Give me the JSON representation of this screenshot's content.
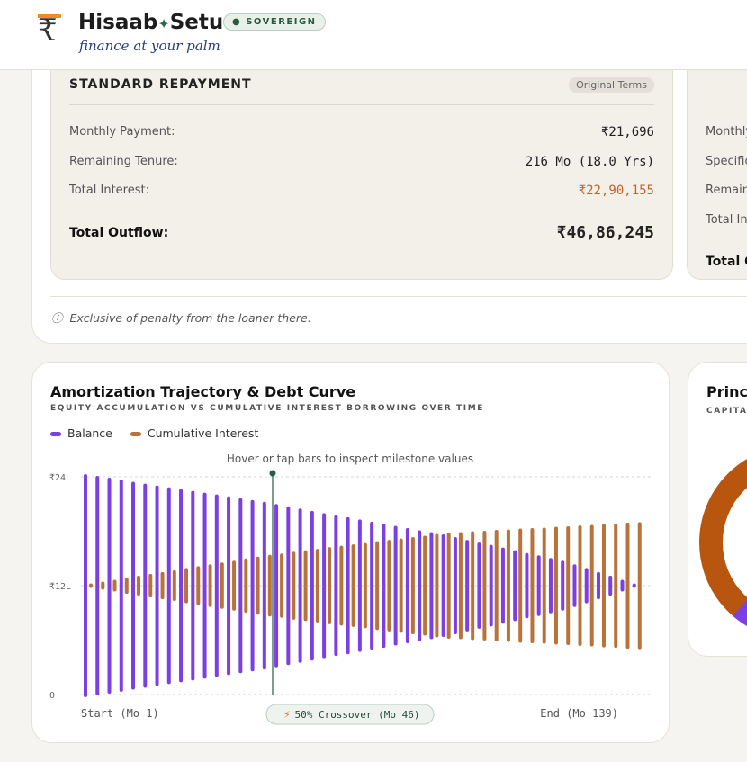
{
  "header": {
    "brand_left": "Hisaab",
    "brand_right": "Setu",
    "tagline": "finance at your palm",
    "badge": "SOVEREIGN"
  },
  "standard_card": {
    "title": "STANDARD REPAYMENT",
    "tag": "Original Terms",
    "rows": [
      {
        "label": "Monthly Payment:",
        "value": "₹21,696"
      },
      {
        "label": "Remaining Tenure:",
        "value": "216 Mo (18.0 Yrs)"
      },
      {
        "label": "Total Interest:",
        "value": "₹22,90,155"
      }
    ],
    "total": {
      "label": "Total Outflow:",
      "value": "₹46,86,245"
    }
  },
  "accelerated_card": {
    "rows": [
      "Monthly",
      "Specific",
      "Remain",
      "Total Int"
    ],
    "total": "Total O"
  },
  "footnote": "Exclusive of penalty from the loaner there.",
  "chart_data": {
    "type": "centered_bar",
    "title": "Amortization Trajectory & Debt Curve",
    "subtitle": "EQUITY ACCUMULATION VS CUMULATIVE INTEREST BORROWING OVER TIME",
    "hint": "Hover or tap bars to inspect milestone values",
    "series": [
      {
        "name": "Balance",
        "color": "#7b3fe4",
        "values": [
          24.6,
          24.2,
          23.8,
          23.4,
          22.9,
          22.5,
          22.1,
          21.7,
          21.3,
          20.9,
          20.5,
          20.1,
          19.7,
          19.3,
          18.9,
          18.5,
          18.0,
          17.5,
          17.0,
          16.5,
          16.0,
          15.5,
          15.1,
          14.6,
          14.1,
          13.7,
          13.2,
          12.7,
          12.2,
          11.8,
          11.3,
          10.7,
          10.1,
          9.5,
          9.0,
          8.4,
          7.8,
          7.2,
          6.7,
          6.1,
          5.5,
          4.7,
          3.9,
          3.0,
          2.2,
          1.3,
          0.5
        ]
      },
      {
        "name": "Cumulative Interest",
        "color": "#b8733a",
        "values": [
          0.5,
          0.9,
          1.3,
          1.8,
          2.2,
          2.6,
          3.0,
          3.4,
          3.9,
          4.3,
          4.7,
          5.1,
          5.5,
          6.0,
          6.4,
          6.8,
          7.1,
          7.5,
          7.8,
          8.1,
          8.5,
          8.8,
          9.1,
          9.4,
          9.8,
          10.1,
          10.4,
          10.7,
          11.0,
          11.4,
          11.7,
          11.8,
          12.0,
          12.1,
          12.3,
          12.4,
          12.6,
          12.7,
          12.8,
          13.0,
          13.1,
          13.3,
          13.4,
          13.6,
          13.7,
          13.9,
          14.0
        ]
      }
    ],
    "ylim": [
      0,
      24
    ],
    "yticks": [
      0,
      {
        "value": 12,
        "label": "₹12L"
      },
      {
        "value": 24,
        "label": "₹24L"
      }
    ],
    "grid": true,
    "x_start": "Start (Mo 1)",
    "x_end": "End (Mo 139)",
    "crossover": "50% Crossover (Mo 46)"
  },
  "side_chart": {
    "title": "Princ",
    "subtitle": "CAPITA"
  }
}
